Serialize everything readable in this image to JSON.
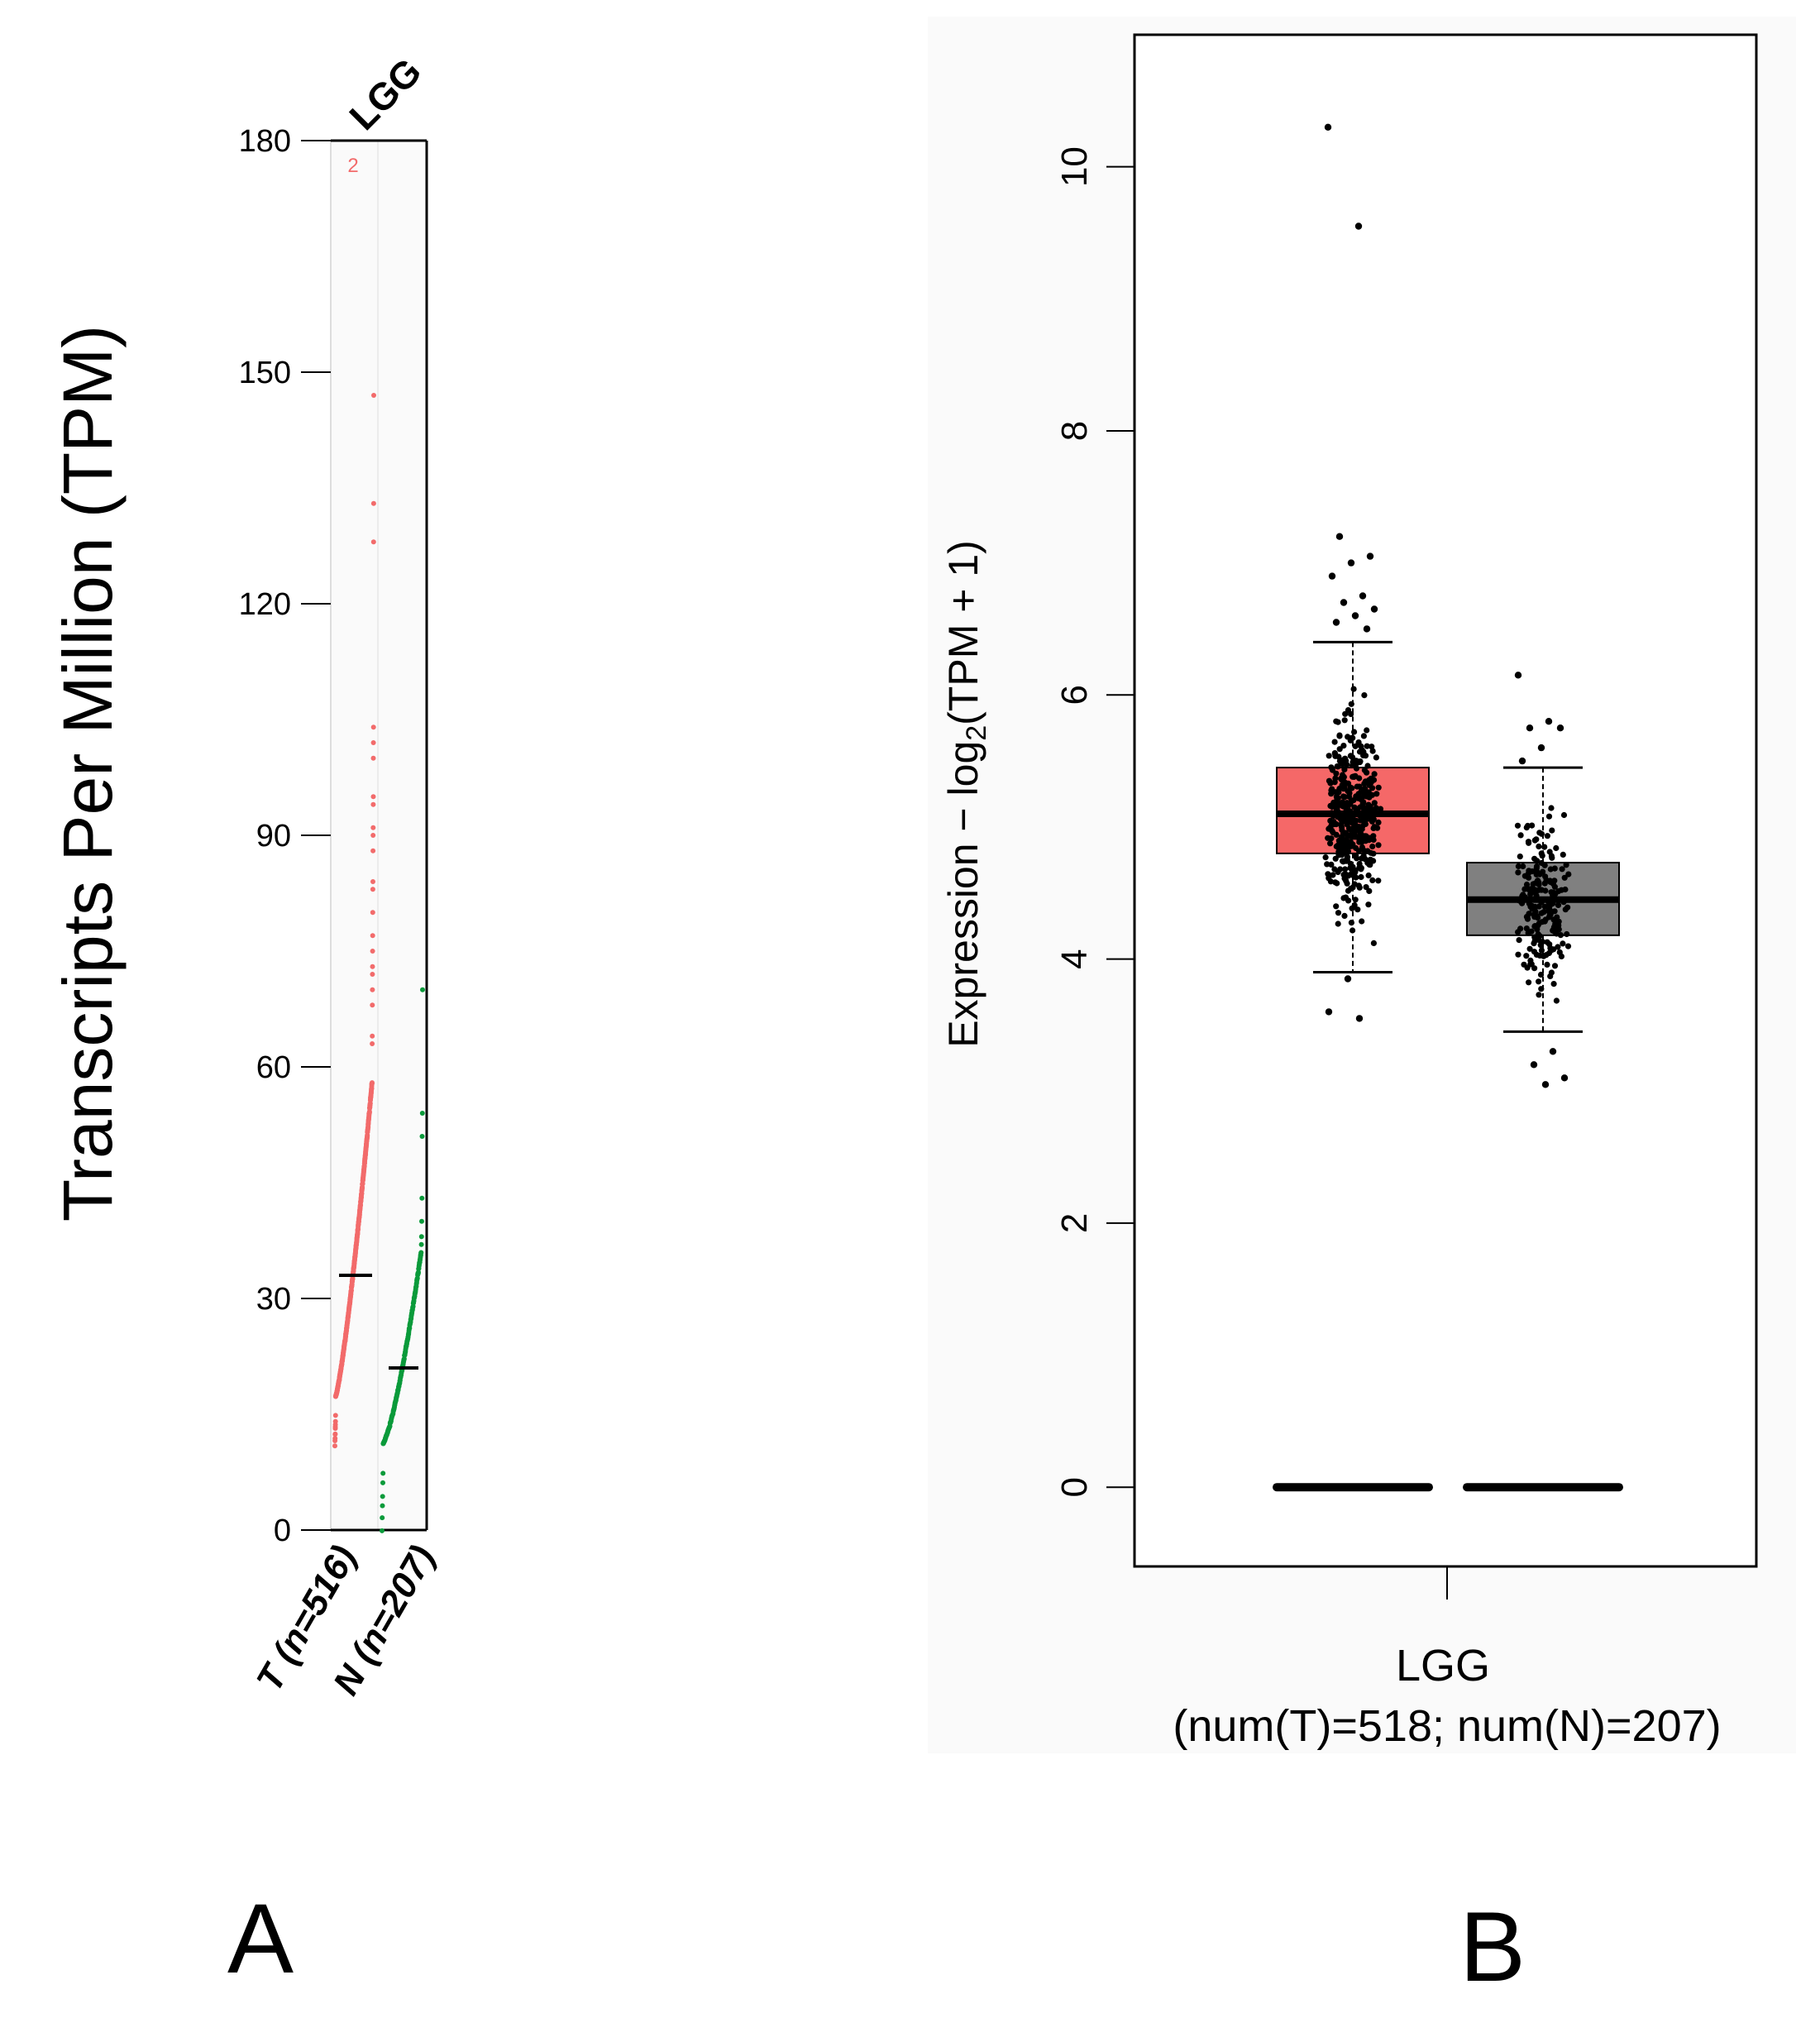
{
  "figure": {
    "panel_labels": [
      "A",
      "B"
    ]
  },
  "colors": {
    "tumor": "#f26b6b",
    "normal": "#0a9a3a",
    "tumor_box": "#f56868",
    "normal_box": "#808080",
    "panel_bg": "#fafafa",
    "median_line": "#000000"
  },
  "chart_data": [
    {
      "panel": "A",
      "type": "scatter",
      "title": "LGG",
      "xlabel": "",
      "ylabel": "Transcripts Per Million (TPM)",
      "ylim": [
        0,
        180
      ],
      "yticks": [
        0,
        30,
        60,
        90,
        120,
        150,
        180
      ],
      "categories": [
        "T (n=516)",
        "N (n=207)"
      ],
      "overflow_label": "2",
      "series": [
        {
          "name": "T (n=516)",
          "color": "#f26b6b",
          "n": 516,
          "median": 33,
          "min": 11,
          "max_shown": 147,
          "outliers": [
            147,
            133,
            128,
            104,
            102,
            100,
            95,
            94,
            91,
            90,
            88,
            84,
            83,
            80,
            77,
            75,
            73,
            72,
            70,
            68,
            64,
            63
          ]
        },
        {
          "name": "N (n=207)",
          "color": "#0a9a3a",
          "n": 207,
          "median": 21,
          "min": 0,
          "max_shown": 70,
          "outliers": [
            70,
            54,
            51,
            43,
            40,
            38,
            37
          ]
        }
      ]
    },
    {
      "panel": "B",
      "type": "box",
      "title": "",
      "xlabel": "LGG",
      "xsublabel": "(num(T)=518; num(N)=207)",
      "ylabel": "Expression − log₂(TPM + 1)",
      "ylabel_parts": {
        "pre": "Expression − log",
        "sub": "2",
        "post": "(TPM + 1)"
      },
      "ylim": [
        -0.6,
        11.0
      ],
      "yticks": [
        0,
        2,
        4,
        6,
        8,
        10
      ],
      "groups": [
        {
          "name": "T",
          "n": 518,
          "color": "#f56868",
          "q1": 4.8,
          "median": 5.1,
          "q3": 5.45,
          "whisker_low": 3.9,
          "whisker_high": 6.4,
          "outliers_high": [
            10.3,
            9.55,
            7.2,
            7.05,
            7.0,
            6.9,
            6.75,
            6.7,
            6.65,
            6.6,
            6.55,
            6.5
          ],
          "outliers_low": [
            3.85,
            3.6,
            3.55
          ]
        },
        {
          "name": "N",
          "n": 207,
          "color": "#808080",
          "q1": 4.18,
          "median": 4.45,
          "q3": 4.73,
          "whisker_low": 3.45,
          "whisker_high": 5.45,
          "outliers_high": [
            6.15,
            5.8,
            5.75,
            5.75,
            5.6,
            5.5
          ],
          "outliers_low": [
            3.3,
            3.2,
            3.1,
            3.05
          ]
        }
      ],
      "zero_bar_value": 0
    }
  ]
}
